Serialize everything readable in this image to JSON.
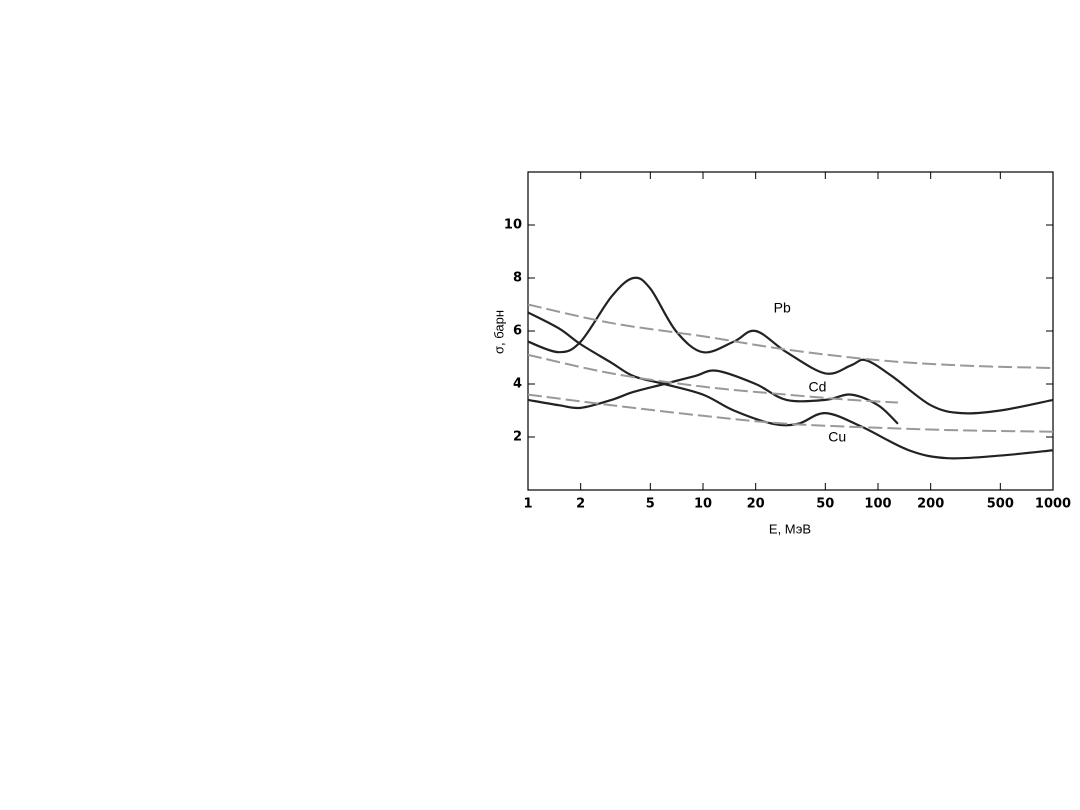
{
  "chart_data": {
    "type": "line",
    "xlabel": "E, МэВ",
    "ylabel": "σ, барн",
    "xscale": "log",
    "xlim": [
      1,
      1000
    ],
    "xticks": [
      1,
      2,
      5,
      10,
      20,
      50,
      100,
      200,
      500,
      1000
    ],
    "ylim": [
      0,
      12
    ],
    "yticks": [
      2,
      4,
      6,
      8,
      10
    ],
    "series": [
      {
        "name": "Pb",
        "color": "#222222",
        "style": "solid",
        "x": [
          1,
          1.5,
          2,
          3,
          4,
          5,
          7,
          10,
          15,
          20,
          30,
          50,
          70,
          85,
          120,
          200,
          300,
          500,
          1000
        ],
        "values": [
          5.6,
          5.2,
          5.6,
          7.3,
          8.0,
          7.6,
          6.0,
          5.2,
          5.6,
          6.0,
          5.2,
          4.4,
          4.7,
          4.9,
          4.3,
          3.2,
          2.9,
          3.0,
          3.4
        ]
      },
      {
        "name": "Cd",
        "color": "#222222",
        "style": "solid",
        "x": [
          1,
          1.5,
          2,
          3,
          4,
          6,
          9,
          12,
          20,
          30,
          50,
          70,
          100,
          130
        ],
        "values": [
          3.4,
          3.2,
          3.1,
          3.4,
          3.7,
          4.0,
          4.3,
          4.5,
          4.0,
          3.4,
          3.4,
          3.6,
          3.2,
          2.5
        ]
      },
      {
        "name": "Cu",
        "color": "#222222",
        "style": "solid",
        "x": [
          1,
          1.5,
          2,
          3,
          4,
          6,
          10,
          15,
          25,
          35,
          50,
          80,
          150,
          250,
          500,
          1000
        ],
        "values": [
          6.7,
          6.1,
          5.5,
          4.8,
          4.3,
          4.0,
          3.6,
          3.0,
          2.5,
          2.5,
          2.9,
          2.4,
          1.5,
          1.2,
          1.3,
          1.5
        ]
      },
      {
        "color": "#999999",
        "style": "dashed",
        "x": [
          1,
          3,
          10,
          30,
          100,
          300,
          1000
        ],
        "values": [
          7.0,
          6.3,
          5.8,
          5.3,
          4.9,
          4.7,
          4.6
        ]
      },
      {
        "color": "#999999",
        "style": "dashed",
        "x": [
          1,
          3,
          10,
          30,
          70,
          130
        ],
        "values": [
          5.1,
          4.4,
          3.9,
          3.6,
          3.4,
          3.3
        ]
      },
      {
        "color": "#999999",
        "style": "dashed",
        "x": [
          1,
          3,
          10,
          30,
          100,
          300,
          1000
        ],
        "values": [
          3.6,
          3.2,
          2.8,
          2.5,
          2.35,
          2.25,
          2.2
        ]
      }
    ]
  }
}
